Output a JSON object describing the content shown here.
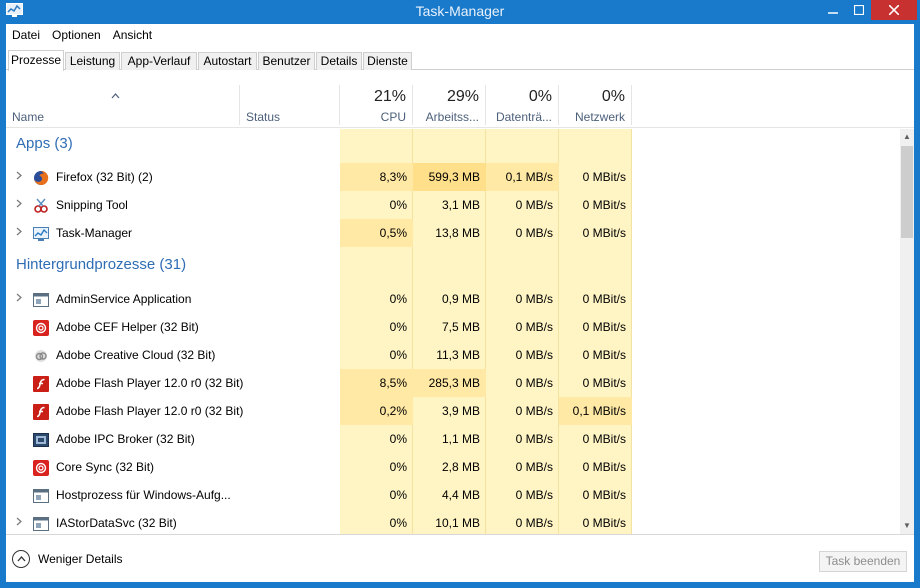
{
  "window": {
    "title": "Task-Manager",
    "icon": "task-manager-icon",
    "controls": [
      "minimize-icon",
      "maximize-icon",
      "close-icon"
    ]
  },
  "menu": {
    "items": [
      "Datei",
      "Optionen",
      "Ansicht"
    ]
  },
  "tabs": [
    {
      "label": "Prozesse",
      "active": true
    },
    {
      "label": "Leistung",
      "active": false
    },
    {
      "label": "App-Verlauf",
      "active": false
    },
    {
      "label": "Autostart",
      "active": false
    },
    {
      "label": "Benutzer",
      "active": false
    },
    {
      "label": "Details",
      "active": false
    },
    {
      "label": "Dienste",
      "active": false
    }
  ],
  "columns": {
    "name": "Name",
    "status": "Status",
    "cpu": {
      "percent": "21%",
      "label": "CPU"
    },
    "memory": {
      "percent": "29%",
      "label": "Arbeitss..."
    },
    "disk": {
      "percent": "0%",
      "label": "Datenträ..."
    },
    "network": {
      "percent": "0%",
      "label": "Netzwerk"
    }
  },
  "groups": [
    {
      "title": "Apps (3)",
      "rows": [
        {
          "name": "Firefox (32 Bit) (2)",
          "icon": "firefox-icon",
          "expandable": true,
          "cpu": "8,3%",
          "memory": "599,3 MB",
          "disk": "0,1 MB/s",
          "network": "0 MBit/s",
          "heat": {
            "cpu": 1,
            "memory": 2,
            "disk": 1,
            "network": 0
          }
        },
        {
          "name": "Snipping Tool",
          "icon": "snipping-tool-icon",
          "expandable": true,
          "cpu": "0%",
          "memory": "3,1 MB",
          "disk": "0 MB/s",
          "network": "0 MBit/s",
          "heat": {
            "cpu": 0,
            "memory": 0,
            "disk": 0,
            "network": 0
          }
        },
        {
          "name": "Task-Manager",
          "icon": "task-manager-icon",
          "expandable": true,
          "cpu": "0,5%",
          "memory": "13,8 MB",
          "disk": "0 MB/s",
          "network": "0 MBit/s",
          "heat": {
            "cpu": 1,
            "memory": 0,
            "disk": 0,
            "network": 0
          }
        }
      ]
    },
    {
      "title": "Hintergrundprozesse (31)",
      "rows": [
        {
          "name": "AdminService Application",
          "icon": "service-window-icon",
          "expandable": true,
          "cpu": "0%",
          "memory": "0,9 MB",
          "disk": "0 MB/s",
          "network": "0 MBit/s",
          "heat": {
            "cpu": 0,
            "memory": 0,
            "disk": 0,
            "network": 0
          }
        },
        {
          "name": "Adobe CEF Helper (32 Bit)",
          "icon": "adobe-cc-red-icon",
          "expandable": false,
          "cpu": "0%",
          "memory": "7,5 MB",
          "disk": "0 MB/s",
          "network": "0 MBit/s",
          "heat": {
            "cpu": 0,
            "memory": 0,
            "disk": 0,
            "network": 0
          }
        },
        {
          "name": "Adobe Creative Cloud (32 Bit)",
          "icon": "adobe-cc-gray-icon",
          "expandable": false,
          "cpu": "0%",
          "memory": "11,3 MB",
          "disk": "0 MB/s",
          "network": "0 MBit/s",
          "heat": {
            "cpu": 0,
            "memory": 0,
            "disk": 0,
            "network": 0
          }
        },
        {
          "name": "Adobe Flash Player 12.0 r0 (32 Bit)",
          "icon": "flash-player-icon",
          "expandable": false,
          "cpu": "8,5%",
          "memory": "285,3 MB",
          "disk": "0 MB/s",
          "network": "0 MBit/s",
          "heat": {
            "cpu": 1,
            "memory": 1,
            "disk": 0,
            "network": 0
          }
        },
        {
          "name": "Adobe Flash Player 12.0 r0 (32 Bit)",
          "icon": "flash-player-icon",
          "expandable": false,
          "cpu": "0,2%",
          "memory": "3,9 MB",
          "disk": "0 MB/s",
          "network": "0,1 MBit/s",
          "heat": {
            "cpu": 1,
            "memory": 0,
            "disk": 0,
            "network": 1
          }
        },
        {
          "name": "Adobe IPC Broker (32 Bit)",
          "icon": "ipc-broker-icon",
          "expandable": false,
          "cpu": "0%",
          "memory": "1,1 MB",
          "disk": "0 MB/s",
          "network": "0 MBit/s",
          "heat": {
            "cpu": 0,
            "memory": 0,
            "disk": 0,
            "network": 0
          }
        },
        {
          "name": "Core Sync (32 Bit)",
          "icon": "adobe-cc-red-icon",
          "expandable": false,
          "cpu": "0%",
          "memory": "2,8 MB",
          "disk": "0 MB/s",
          "network": "0 MBit/s",
          "heat": {
            "cpu": 0,
            "memory": 0,
            "disk": 0,
            "network": 0
          }
        },
        {
          "name": "Hostprozess für Windows-Aufg...",
          "icon": "service-window-icon",
          "expandable": false,
          "cpu": "0%",
          "memory": "4,4 MB",
          "disk": "0 MB/s",
          "network": "0 MBit/s",
          "heat": {
            "cpu": 0,
            "memory": 0,
            "disk": 0,
            "network": 0
          }
        },
        {
          "name": "IAStorDataSvc (32 Bit)",
          "icon": "service-window-icon",
          "expandable": true,
          "cpu": "0%",
          "memory": "10,1 MB",
          "disk": "0 MB/s",
          "network": "0 MBit/s",
          "heat": {
            "cpu": 0,
            "memory": 0,
            "disk": 0,
            "network": 0
          }
        }
      ]
    }
  ],
  "footer": {
    "fewer_details": "Weniger Details",
    "end_task": "Task beenden"
  },
  "colors": {
    "titlebar": "#1979ca",
    "close": "#c7312f",
    "heat_base": "#fff4c4",
    "heat_1": "#ffe9a4",
    "heat_2": "#ffdf8a",
    "group_title": "#2f6db5"
  }
}
